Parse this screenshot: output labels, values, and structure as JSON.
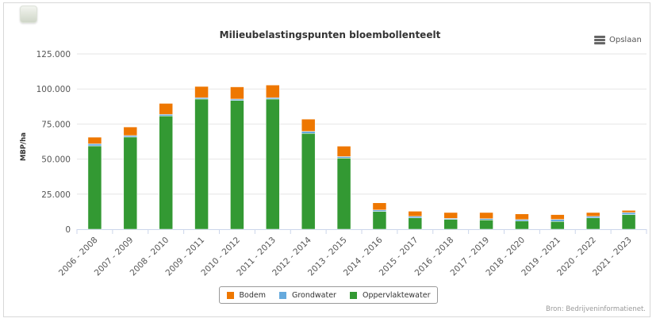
{
  "chart_data": {
    "type": "bar",
    "stacked": true,
    "title": "Milieubelastingspunten bloembollenteelt",
    "ylabel": "MBP/ha",
    "xlabel": "",
    "ylim": [
      0,
      125000
    ],
    "yticks": [
      "0",
      "25.000",
      "50.000",
      "75.000",
      "100.000",
      "125.000"
    ],
    "ytick_values": [
      0,
      25000,
      50000,
      75000,
      100000,
      125000
    ],
    "grid": true,
    "legend_position": "bottom-center",
    "categories": [
      "2006 - 2008",
      "2007 - 2009",
      "2008 - 2010",
      "2009 - 2011",
      "2010 - 2012",
      "2011 - 2013",
      "2012 - 2014",
      "2013 - 2015",
      "2014 - 2016",
      "2015 - 2017",
      "2016 - 2018",
      "2017 - 2019",
      "2018 - 2020",
      "2019 - 2021",
      "2020 - 2022",
      "2021 - 2023"
    ],
    "series": [
      {
        "name": "Oppervlaktewater",
        "color": "#339933",
        "values": [
          59400,
          65700,
          80800,
          92800,
          91800,
          92800,
          68300,
          50700,
          12700,
          8100,
          7000,
          6600,
          5800,
          5500,
          8100,
          10400
        ]
      },
      {
        "name": "Grondwater",
        "color": "#66aadd",
        "values": [
          1500,
          1100,
          1100,
          1000,
          1000,
          1000,
          1500,
          1100,
          1000,
          1100,
          700,
          900,
          1100,
          1500,
          1100,
          1500
        ]
      },
      {
        "name": "Bodem",
        "color": "#ee7700",
        "values": [
          4700,
          6100,
          7800,
          8000,
          8700,
          9000,
          8700,
          7400,
          5100,
          3600,
          4200,
          4400,
          4000,
          3400,
          2700,
          1500
        ]
      }
    ],
    "legend_order": [
      "Bodem",
      "Grondwater",
      "Oppervlaktewater"
    ],
    "source": "Bron: Bedrijveninformatienet."
  },
  "toolbar": {
    "export_label": "Opslaan"
  }
}
